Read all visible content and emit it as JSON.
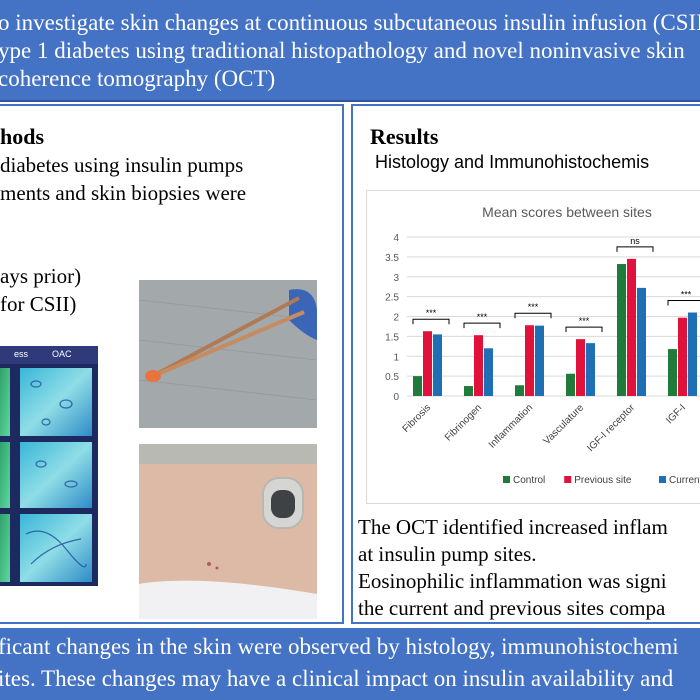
{
  "header": {
    "line1": "o investigate skin changes at continuous subcutaneous insulin infusion (CSII",
    "line2": "ype 1 diabetes using traditional histopathology and novel noninvasive skin",
    "line3": "coherence tomography (OCT)"
  },
  "methods": {
    "title": "hods",
    "line1": "diabetes using insulin pumps",
    "line2": "ments and skin biopsies were",
    "line3": "ays prior)",
    "line4": "for CSII)",
    "oct_label_1": "ess",
    "oct_label_2": "OAC"
  },
  "results": {
    "title": "Results",
    "subtitle": "Histology and Immunohistochemis",
    "text1": "The OCT identified increased inflam",
    "text2": "at insulin pump sites.",
    "text3": "Eosinophilic inflammation was signi",
    "text4": "the current and previous sites compa"
  },
  "conclusion": {
    "line1": "ficant changes in the skin were observed by histology, immunohistochemi",
    "line2": "ites. These changes may have a clinical impact on insulin availability and"
  },
  "chart_data": {
    "type": "bar",
    "title": "Mean scores between sites",
    "categories": [
      "Fibrosis",
      "Fibrinogen",
      "Inflammation",
      "Vasculature",
      "IGF-I receptor",
      "IGF-I"
    ],
    "series": [
      {
        "name": "Control",
        "color": "#1e7b3a",
        "values": [
          0.5,
          0.25,
          0.27,
          0.56,
          3.32,
          1.18
        ]
      },
      {
        "name": "Previous site",
        "color": "#e0123c",
        "values": [
          1.63,
          1.53,
          1.78,
          1.43,
          3.45,
          1.97
        ]
      },
      {
        "name": "Current site",
        "color": "#1f6fb4",
        "values": [
          1.55,
          1.2,
          1.77,
          1.33,
          2.72,
          2.1
        ]
      }
    ],
    "ylim": [
      0,
      4
    ],
    "yticks": [
      "0",
      "0.5",
      "1",
      "1.5",
      "2",
      "2.5",
      "3",
      "3.5",
      "4"
    ],
    "significance": [
      "***",
      "***",
      "***",
      "***",
      "ns",
      "***"
    ],
    "grid": true,
    "legend": "bottom"
  }
}
